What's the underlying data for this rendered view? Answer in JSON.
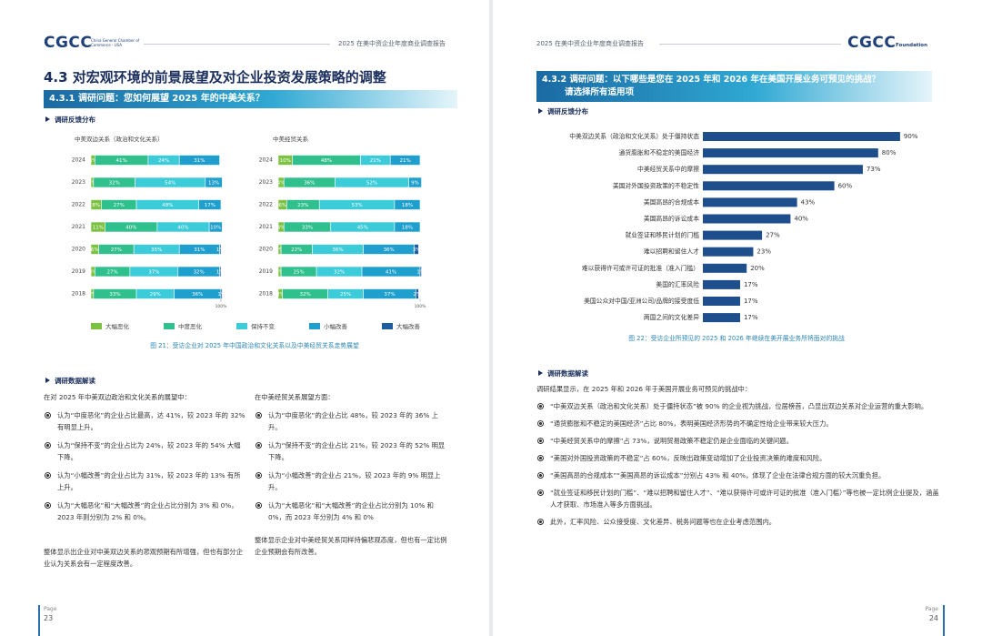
{
  "left_page": {
    "header": {
      "logo": "CGCC",
      "org": "China General Chamber of Commerce - USA",
      "report_title": "2025 在美中资企业年度商业调查报告"
    },
    "section_title": "4.3 对宏观环境的前景展望及对企业投资发展策略的调整",
    "question": "4.3.1 调研问题：您如何展望 2025 年的中美关系？",
    "distribution_label": "调研反馈分布",
    "figure_caption": "图 21：受访企业对 2025 年中国政治和文化关系以及中美经贸关系走势展望",
    "analysis_label": "调研数据解读",
    "analysis": [
      {
        "intro": "在对 2025 年中美双边政治和文化关系的展望中：",
        "bullets": [
          "认为“中度恶化”的企业占比最高，达 41%，较 2023 年的 32% 有明显上升。",
          "认为“保持不变”的企业占比为 24%，较 2023 年的 54% 大幅下降。",
          "认为“小幅改善”的企业占比为 31%，较 2023 年的 13% 有所上升。",
          "认为“大幅恶化”和“大幅改善”的企业占比分别为 3% 和 0%，2023 年则分别为 2% 和 0%。"
        ],
        "summary": "整体显示出企业对中美双边关系的悲观预期有所增强，但也有部分企业认为关系会有一定程度改善。"
      },
      {
        "intro": "在中美经贸关系展望方面：",
        "bullets": [
          "认为“中度恶化”的企业占比 48%，较 2023 年的 36% 上升。",
          "认为“保持不变”的企业占比 21%，较 2023 年的 52% 明显下降。",
          "认为“小幅改善”的企业占 21%，较 2023 年的 9% 明显上升。",
          "认为“大幅恶化”和“大幅改善”的企业占比分别为 10% 和 0%，而 2023 年分别为 4% 和 0%"
        ],
        "summary": "整体显示企业对中美经贸关系同样持偏悲观态度，但也有一定比例企业预期会有所改善。"
      }
    ],
    "footer": {
      "page_label": "Page",
      "page_number": "23"
    }
  },
  "right_page": {
    "header": {
      "report_title": "2025 在美中资企业年度商业调查报告",
      "logo": "CGCC",
      "logo_sub": "Foundation"
    },
    "question": "4.3.2 调研问题：以下哪些是您在 2025 年和 2026 年在美国开展业务可预见的挑战？",
    "question_note": "请选择所有适用项",
    "distribution_label": "调研反馈分布",
    "figure_caption": "图 22：受访企业所预见的 2025 和 2026 年继续在美开展业务所将面对的挑战",
    "analysis_label": "调研数据解读",
    "analysis": {
      "intro": "调研结果显示，在 2025 年和 2026 年于美国开展业务可预见的挑战中：",
      "bullets": [
        "“中美双边关系（政治和文化关系）处于僵持状态”被 90% 的企业视为挑战，位居榜首，凸显出双边关系对企业运营的重大影响。",
        "“通货膨胀和不稳定的美国经济”占比 80%，表明美国经济形势的不确定性给企业带来较大压力。",
        "“中美经贸关系中的摩擦”占 73%，说明贸易政策不稳定仍是企业面临的关键问题。",
        "“美国对外国投资政策的不稳定”占 60%，反映出政策变动增加了企业投资决策的难度和风险。",
        "“美国高昂的合规成本”“美国高昂的诉讼成本”分别占 43% 和 40%，体现了企业在法律合规方面的较大沉重负担。",
        "“就业签证和移民计划的门槛”、“难以招聘和留住人才”、“难以获得许可或许可证的批准（准入门槛）”等也被一定比例企业提及，涵盖人才获取、市场准入等多方面挑战。",
        "此外，汇率风险、公众接受度、文化差异、税务问题等也在企业考虑范围内。"
      ]
    },
    "footer": {
      "page_label": "Page",
      "page_number": "24"
    }
  },
  "chart_data": [
    {
      "type": "bar",
      "orientation": "horizontal",
      "stacked": true,
      "title": "中美双边关系（政治和文化关系）",
      "categories": [
        "2024",
        "2023",
        "2022",
        "2021",
        "2020",
        "2019",
        "2018"
      ],
      "series": [
        {
          "name": "大幅恶化",
          "color": "#7cc242",
          "values": [
            3,
            2,
            8,
            11,
            6,
            3,
            2
          ],
          "value_labels": [
            "3%",
            "2%",
            "8%",
            "11%",
            "6%",
            "3%",
            "2%"
          ]
        },
        {
          "name": "中度恶化",
          "color": "#2fc08e",
          "values": [
            41,
            32,
            27,
            40,
            27,
            27,
            33
          ],
          "value_labels": [
            "41%",
            "32%",
            "27%",
            "40%",
            "27%",
            "27%",
            "33%"
          ]
        },
        {
          "name": "保持不变",
          "color": "#3ccbd8",
          "values": [
            24,
            54,
            48,
            40,
            35,
            37,
            29
          ],
          "value_labels": [
            "24%",
            "54%",
            "48%",
            "40%",
            "35%",
            "37%",
            "29%"
          ]
        },
        {
          "name": "小幅改善",
          "color": "#1f9fcd",
          "values": [
            31,
            13,
            17,
            10,
            31,
            32,
            36
          ],
          "value_labels": [
            "31%",
            "13%",
            "17%",
            "10%",
            "31%",
            "32%",
            "36%"
          ]
        },
        {
          "name": "大幅改善",
          "color": "#1d5c9e",
          "values": [
            0,
            0,
            0,
            0,
            1,
            1,
            1
          ],
          "value_labels": [
            null,
            null,
            null,
            null,
            "1%",
            "1%",
            "1%"
          ]
        }
      ],
      "xlim": [
        0,
        100
      ],
      "xticks": [
        {
          "value": 100,
          "label": "100%"
        }
      ]
    },
    {
      "type": "bar",
      "orientation": "horizontal",
      "stacked": true,
      "title": "中美经贸关系",
      "categories": [
        "2024",
        "2023",
        "2022",
        "2021",
        "2020",
        "2019",
        "2018"
      ],
      "series": [
        {
          "color": "#7cc242",
          "values": [
            10,
            4,
            6,
            4,
            2,
            2,
            3
          ],
          "value_labels": [
            "10%",
            "4%",
            "6%",
            "4%",
            "2%",
            "2%",
            "3%"
          ]
        },
        {
          "color": "#2fc08e",
          "values": [
            48,
            36,
            23,
            33,
            22,
            25,
            32
          ],
          "value_labels": [
            "48%",
            "36%",
            "23%",
            "33%",
            "22%",
            "25%",
            "32%"
          ]
        },
        {
          "color": "#3ccbd8",
          "values": [
            21,
            52,
            53,
            45,
            36,
            32,
            25
          ],
          "value_labels": [
            "21%",
            "52%",
            "53%",
            "45%",
            "36%",
            "32%",
            "25%"
          ]
        },
        {
          "color": "#1f9fcd",
          "values": [
            21,
            9,
            18,
            18,
            36,
            41,
            37
          ],
          "value_labels": [
            "21%",
            "9%",
            "18%",
            "18%",
            "36%",
            "41%",
            "37%"
          ]
        },
        {
          "color": "#1d5c9e",
          "values": [
            0,
            0,
            0,
            0,
            3,
            1,
            2
          ],
          "value_labels": [
            null,
            null,
            null,
            null,
            "3%",
            "1%",
            "2%"
          ]
        }
      ],
      "xlim": [
        0,
        100
      ],
      "xticks": [
        {
          "value": 100,
          "label": "100%"
        }
      ]
    },
    {
      "type": "bar",
      "orientation": "horizontal",
      "categories": [
        "中美双边关系（政治和文化关系）处于僵持状态",
        "通货膨胀和不稳定的美国经济",
        "中美经贸关系中的摩擦",
        "美国对外国投资政策的不稳定性",
        "美国高昂的合规成本",
        "美国高昂的诉讼成本",
        "就业签证和移民计划的门槛",
        "难以招聘和留住人才",
        "难以获得许可或许可证的批准（准入门槛）",
        "美国的汇率风险",
        "美国公众对中国/亚洲公司/品牌的接受度低",
        "两国之间的文化差异"
      ],
      "values": [
        90,
        80,
        73,
        60,
        43,
        40,
        27,
        23,
        20,
        17,
        17,
        17
      ],
      "value_labels": [
        "90%",
        "80%",
        "73%",
        "60%",
        "43%",
        "40%",
        "27%",
        "23%",
        "20%",
        "17%",
        "17%",
        "17%"
      ],
      "color": "#1f4e8c",
      "xlim": [
        0,
        100
      ]
    }
  ]
}
